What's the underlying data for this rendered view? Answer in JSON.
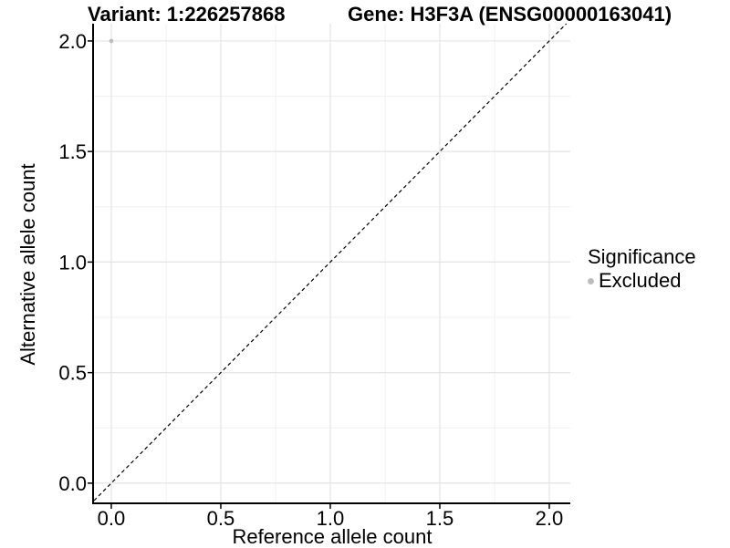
{
  "chart_data": {
    "type": "scatter",
    "title_variant": "Variant: 1:226257868",
    "title_gene": "Gene: H3F3A (ENSG00000163041)",
    "xlabel": "Reference allele count",
    "ylabel": "Alternative allele count",
    "xlim": [
      -0.079,
      2.096
    ],
    "ylim": [
      -0.087,
      2.078
    ],
    "x_ticks": [
      0.0,
      0.5,
      1.0,
      1.5,
      2.0
    ],
    "x_tick_labels": [
      "0.0",
      "0.5",
      "1.0",
      "1.5",
      "2.0"
    ],
    "y_ticks": [
      0.0,
      0.5,
      1.0,
      1.5,
      2.0
    ],
    "y_tick_labels": [
      "0.0",
      "0.5",
      "1.0",
      "1.5",
      "2.0"
    ],
    "minor_ticks": [
      0.25,
      0.75,
      1.25,
      1.75
    ],
    "grid": "major+minor",
    "series": [
      {
        "name": "Excluded",
        "color": "#bdbdbd",
        "points": [
          {
            "x": 0.0,
            "y": 2.0
          }
        ]
      }
    ],
    "reference_line": {
      "slope": 1,
      "intercept": 0,
      "style": "dashed",
      "color": "#000000"
    },
    "legend_position": "right",
    "legend": {
      "title": "Significance",
      "items": [
        {
          "label": "Excluded",
          "color": "#bdbdbd"
        }
      ]
    },
    "colors": {
      "point": "#bdbdbd",
      "grid_major": "#e4e4e4",
      "grid_minor": "#f1f1f1",
      "axis": "#000000",
      "text": "#000000"
    }
  }
}
